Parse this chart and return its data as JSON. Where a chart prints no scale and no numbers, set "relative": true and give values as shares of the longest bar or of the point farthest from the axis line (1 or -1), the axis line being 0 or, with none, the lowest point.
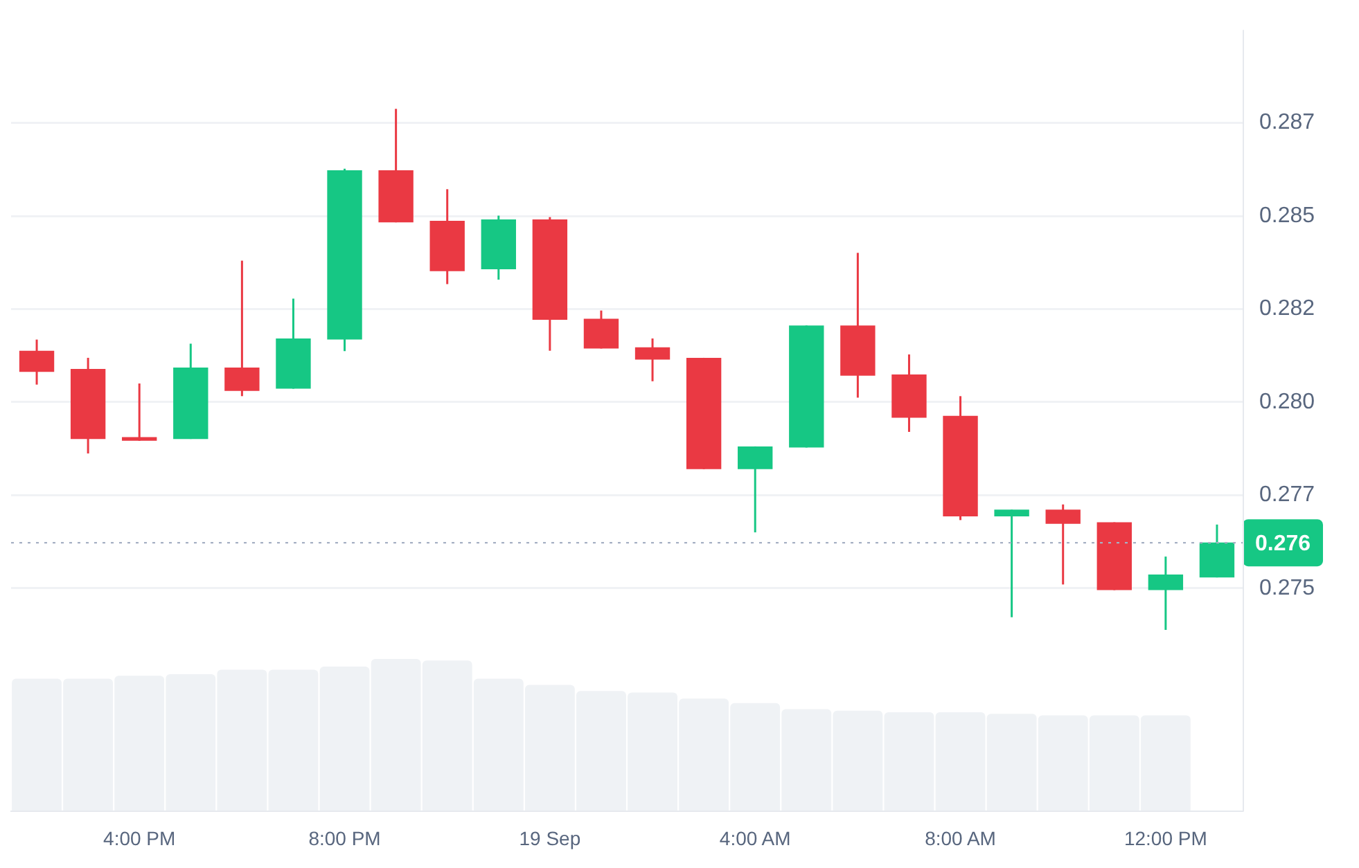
{
  "chart_data": [
    {
      "type": "candlestick",
      "categories": [
        null,
        null,
        "4:00 PM",
        null,
        null,
        null,
        "8:00 PM",
        null,
        null,
        null,
        "19 Sep",
        null,
        null,
        null,
        "4:00 AM",
        null,
        null,
        null,
        "8:00 AM",
        null,
        null,
        null,
        "12:00 PM",
        null
      ],
      "ohlc": [
        [
          0.28138,
          0.28168,
          0.28047,
          0.28081
        ],
        [
          0.28089,
          0.28119,
          0.27862,
          0.27901
        ],
        [
          0.27906,
          0.2805,
          0.27896,
          0.27896
        ],
        [
          0.27901,
          0.28157,
          0.27901,
          0.28093
        ],
        [
          0.28093,
          0.2838,
          0.28016,
          0.2803
        ],
        [
          0.28036,
          0.28278,
          0.28036,
          0.28171
        ],
        [
          0.28168,
          0.28627,
          0.28137,
          0.28623
        ],
        [
          0.28623,
          0.28788,
          0.28483,
          0.28483
        ],
        [
          0.28487,
          0.28572,
          0.28317,
          0.28352
        ],
        [
          0.28357,
          0.28501,
          0.28329,
          0.28491
        ],
        [
          0.28491,
          0.28497,
          0.28138,
          0.28221
        ],
        [
          0.28224,
          0.28246,
          0.28144,
          0.28144
        ],
        [
          0.28147,
          0.28171,
          0.28056,
          0.28114
        ],
        [
          0.28119,
          0.28119,
          0.2782,
          0.2782
        ],
        [
          0.2782,
          0.27881,
          0.2765,
          0.27881
        ],
        [
          0.27878,
          0.28206,
          0.27878,
          0.28206
        ],
        [
          0.28206,
          0.28401,
          0.28012,
          0.28071
        ],
        [
          0.28074,
          0.28128,
          0.2792,
          0.27958
        ],
        [
          0.27963,
          0.28016,
          0.27683,
          0.27693
        ],
        [
          0.27693,
          0.27711,
          0.27422,
          0.27711
        ],
        [
          0.27711,
          0.27725,
          0.2751,
          0.27673
        ],
        [
          0.27677,
          0.27677,
          0.27495,
          0.27495
        ],
        [
          0.27495,
          0.27585,
          0.27388,
          0.27537
        ],
        [
          0.27529,
          0.27671,
          0.27529,
          0.27623
        ]
      ],
      "colors": [
        "#ea3943",
        "#ea3943",
        "#ea3943",
        "#16c784",
        "#ea3943",
        "#16c784",
        "#16c784",
        "#ea3943",
        "#ea3943",
        "#16c784",
        "#ea3943",
        "#ea3943",
        "#ea3943",
        "#ea3943",
        "#16c784",
        "#16c784",
        "#ea3943",
        "#ea3943",
        "#ea3943",
        "#16c784",
        "#ea3943",
        "#ea3943",
        "#16c784",
        "#16c784"
      ],
      "ylim": [
        0.269,
        0.29
      ],
      "yticks": [
        {
          "value": 0.2875,
          "label": "0.287"
        },
        0.285,
        {
          "value": 0.2825,
          "label": "0.282"
        },
        {
          "value": 0.28,
          "label": "0.280"
        },
        {
          "value": 0.2775,
          "label": "0.277"
        },
        0.275
      ],
      "ref_lines": [
        {
          "axis": "y",
          "value": 0.27622,
          "label": "0.276",
          "line_style": "dotted"
        }
      ],
      "grid": "y",
      "legend": false
    },
    {
      "type": "bar",
      "relative": true,
      "color": "#eff2f5",
      "tick_labels": false,
      "categories": [
        null,
        null,
        null,
        null,
        null,
        null,
        null,
        null,
        null,
        null,
        null,
        null,
        null,
        null,
        null,
        null,
        null,
        null,
        null,
        null,
        null,
        null,
        null,
        null
      ],
      "values": [
        0.87,
        0.87,
        0.89,
        0.9,
        0.93,
        0.93,
        0.95,
        1,
        0.99,
        0.87,
        0.83,
        0.79,
        0.78,
        0.74,
        0.71,
        0.67,
        0.66,
        0.65,
        0.65,
        0.64,
        0.63,
        0.63,
        0.63,
        null
      ]
    }
  ]
}
